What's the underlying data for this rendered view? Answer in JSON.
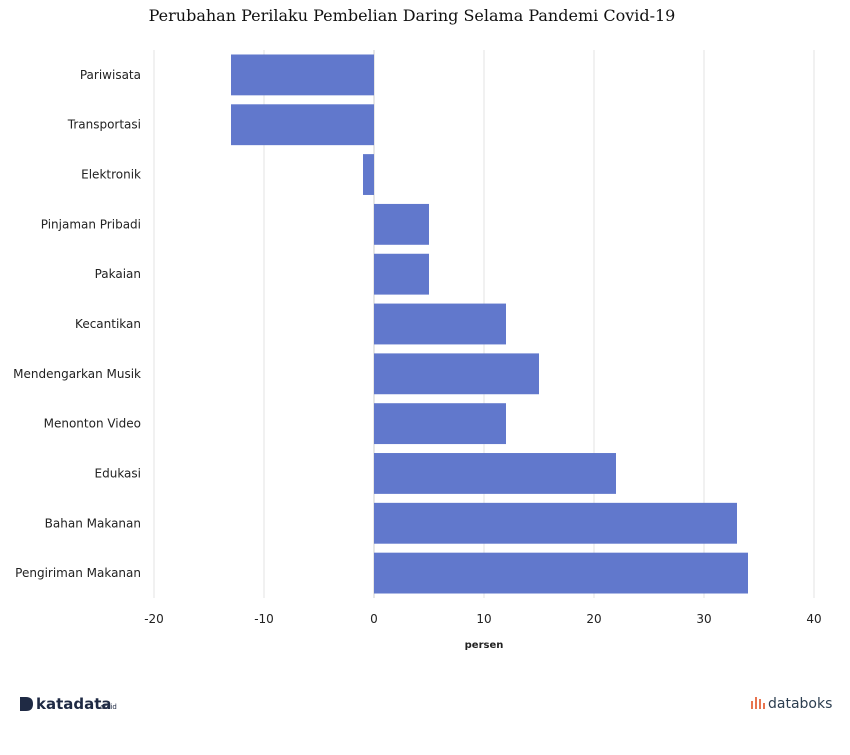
{
  "chart_data": {
    "type": "bar",
    "orientation": "horizontal",
    "title": "Perubahan Perilaku Pembelian Daring Selama Pandemi Covid-19",
    "xlabel": "persen",
    "ylabel": "",
    "categories": [
      "Pariwisata",
      "Transportasi",
      "Elektronik",
      "Pinjaman Pribadi",
      "Pakaian",
      "Kecantikan",
      "Mendengarkan Musik",
      "Menonton Video",
      "Edukasi",
      "Bahan Makanan",
      "Pengiriman Makanan"
    ],
    "values": [
      -13,
      -13,
      -1,
      5,
      5,
      12,
      15,
      12,
      22,
      33,
      34
    ],
    "xlim": [
      -20,
      40
    ],
    "xticks": [
      -20,
      -10,
      0,
      10,
      20,
      30,
      40
    ],
    "grid": true,
    "bar_color": "#6178cc"
  },
  "branding": {
    "left_name": "katadata",
    "left_suffix": ".co.id",
    "right_name": "databoks",
    "accent": "#e8744f"
  }
}
